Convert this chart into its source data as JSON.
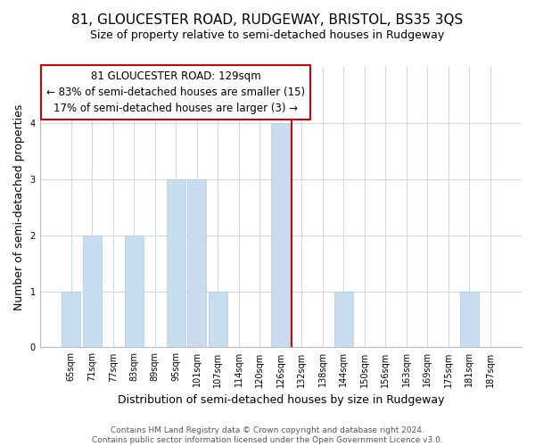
{
  "title": "81, GLOUCESTER ROAD, RUDGEWAY, BRISTOL, BS35 3QS",
  "subtitle": "Size of property relative to semi-detached houses in Rudgeway",
  "xlabel": "Distribution of semi-detached houses by size in Rudgeway",
  "ylabel": "Number of semi-detached properties",
  "categories": [
    "65sqm",
    "71sqm",
    "77sqm",
    "83sqm",
    "89sqm",
    "95sqm",
    "101sqm",
    "107sqm",
    "114sqm",
    "120sqm",
    "126sqm",
    "132sqm",
    "138sqm",
    "144sqm",
    "150sqm",
    "156sqm",
    "163sqm",
    "169sqm",
    "175sqm",
    "181sqm",
    "187sqm"
  ],
  "values": [
    1,
    2,
    0,
    2,
    0,
    3,
    3,
    1,
    0,
    0,
    4,
    0,
    0,
    1,
    0,
    0,
    0,
    0,
    0,
    1,
    0
  ],
  "bar_color": "#c8dcf0",
  "bar_edge_color": "#b0c8e8",
  "property_line_x": 10.5,
  "property_line_color": "#cc0000",
  "annotation_line1": "81 GLOUCESTER ROAD: 129sqm",
  "annotation_line2": "← 83% of semi-detached houses are smaller (15)",
  "annotation_line3": "17% of semi-detached houses are larger (3) →",
  "annotation_box_color": "#ffffff",
  "annotation_box_edge_color": "#cc0000",
  "ylim": [
    0,
    5
  ],
  "yticks": [
    0,
    1,
    2,
    3,
    4,
    5
  ],
  "footnote": "Contains HM Land Registry data © Crown copyright and database right 2024.\nContains public sector information licensed under the Open Government Licence v3.0.",
  "bg_color": "#ffffff",
  "grid_color": "#d0d8e8",
  "title_fontsize": 11,
  "subtitle_fontsize": 9,
  "label_fontsize": 9,
  "tick_fontsize": 7,
  "annotation_fontsize": 8.5,
  "footnote_fontsize": 6.5
}
